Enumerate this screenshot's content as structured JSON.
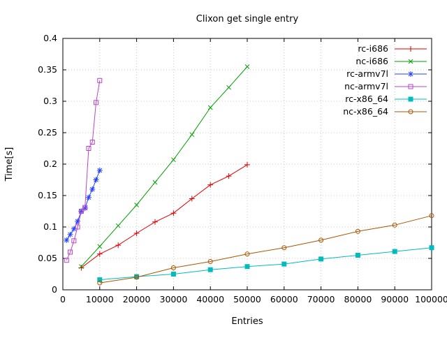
{
  "chart_data": {
    "type": "line",
    "title": "Clixon get single entry",
    "xlabel": "Entries",
    "ylabel": "Time[s]",
    "xlim": [
      0,
      100000
    ],
    "ylim": [
      0,
      0.4
    ],
    "grid": true,
    "legend_position": "top-right-inside",
    "x_ticks": [
      0,
      10000,
      20000,
      30000,
      40000,
      50000,
      60000,
      70000,
      80000,
      90000,
      100000
    ],
    "x_tick_labels": [
      "0",
      "10000",
      "20000",
      "30000",
      "40000",
      "50000",
      "60000",
      "70000",
      "80000",
      "90000",
      "100000"
    ],
    "y_ticks": [
      0,
      0.05,
      0.1,
      0.15,
      0.2,
      0.25,
      0.3,
      0.35,
      0.4
    ],
    "y_tick_labels": [
      "0",
      "0.05",
      "0.1",
      "0.15",
      "0.2",
      "0.25",
      "0.3",
      "0.35",
      "0.4"
    ],
    "series": [
      {
        "name": "rc-i686",
        "color": "#e00000",
        "marker": "plus",
        "x": [
          5000,
          10000,
          15000,
          20000,
          25000,
          30000,
          35000,
          40000,
          45000,
          50000
        ],
        "y": [
          0.035,
          0.057,
          0.071,
          0.09,
          0.108,
          0.122,
          0.145,
          0.167,
          0.181,
          0.199
        ]
      },
      {
        "name": "nc-i686",
        "color": "#00a000",
        "marker": "cross",
        "x": [
          5000,
          10000,
          15000,
          20000,
          25000,
          30000,
          35000,
          40000,
          45000,
          50000
        ],
        "y": [
          0.037,
          0.069,
          0.102,
          0.135,
          0.171,
          0.207,
          0.247,
          0.29,
          0.322,
          0.355
        ]
      },
      {
        "name": "rc-armv7l",
        "color": "#2040ff",
        "marker": "asterisk",
        "x": [
          1000,
          2000,
          3000,
          4000,
          5000,
          6000,
          7000,
          8000,
          9000,
          10000
        ],
        "y": [
          0.079,
          0.088,
          0.097,
          0.109,
          0.125,
          0.13,
          0.147,
          0.16,
          0.175,
          0.19
        ]
      },
      {
        "name": "nc-armv7l",
        "color": "#bb44cc",
        "marker": "square-open",
        "x": [
          1000,
          2000,
          3000,
          4000,
          5000,
          6000,
          7000,
          8000,
          9000,
          10000
        ],
        "y": [
          0.047,
          0.06,
          0.078,
          0.1,
          0.125,
          0.131,
          0.225,
          0.235,
          0.298,
          0.333
        ]
      },
      {
        "name": "rc-x86_64",
        "color": "#00bcbc",
        "marker": "square-filled",
        "x": [
          10000,
          20000,
          30000,
          40000,
          50000,
          60000,
          70000,
          80000,
          90000,
          100000
        ],
        "y": [
          0.016,
          0.021,
          0.025,
          0.032,
          0.037,
          0.041,
          0.049,
          0.055,
          0.061,
          0.067
        ]
      },
      {
        "name": "nc-x86_64",
        "color": "#aa5500",
        "marker": "circle-open",
        "x": [
          10000,
          20000,
          30000,
          40000,
          50000,
          60000,
          70000,
          80000,
          90000,
          100000
        ],
        "y": [
          0.011,
          0.02,
          0.035,
          0.045,
          0.057,
          0.067,
          0.079,
          0.093,
          0.103,
          0.118
        ]
      }
    ]
  }
}
